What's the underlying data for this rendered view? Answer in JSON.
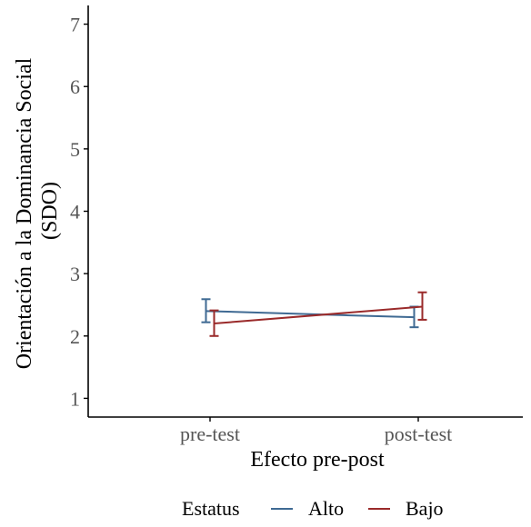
{
  "chart_data": {
    "type": "line",
    "title": "",
    "xlabel": "Efecto pre-post",
    "ylabel": [
      "Orientación a la Dominancia Social",
      "(SDO)"
    ],
    "categories": [
      "pre-test",
      "post-test"
    ],
    "ylim": [
      0.7,
      7.3
    ],
    "yticks": [
      1,
      2,
      3,
      4,
      5,
      6,
      7
    ],
    "grid": false,
    "legend": {
      "title": "Estatus",
      "position": "bottom"
    },
    "series": [
      {
        "name": "Alto",
        "color": "#3F6A93",
        "values": [
          2.4,
          2.3
        ],
        "error_low": [
          2.22,
          2.14
        ],
        "error_high": [
          2.59,
          2.47
        ]
      },
      {
        "name": "Bajo",
        "color": "#9A2A2A",
        "values": [
          2.2,
          2.47
        ],
        "error_low": [
          2.0,
          2.26
        ],
        "error_high": [
          2.41,
          2.7
        ]
      }
    ]
  }
}
